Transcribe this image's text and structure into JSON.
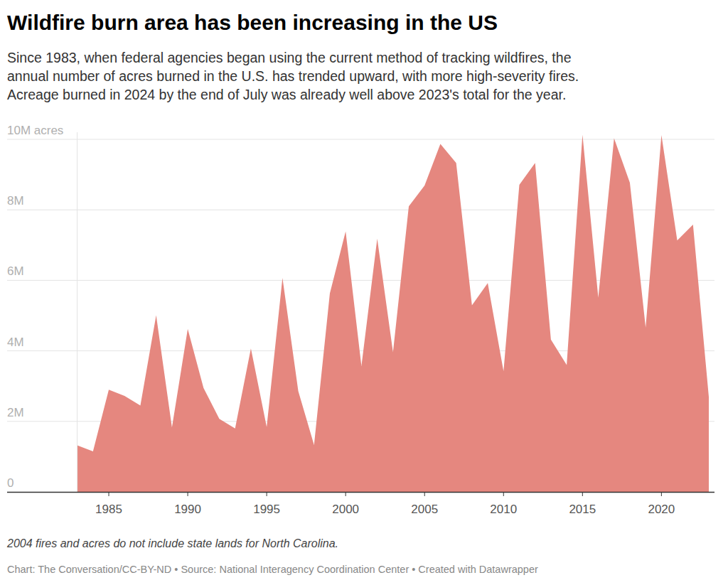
{
  "chart_data": {
    "type": "area",
    "title": "Wildfire burn area has been increasing in the US",
    "subtitle": [
      "Since 1983, when federal agencies began using the current method of tracking wildfires, the",
      "annual number of acres burned in the U.S. has trended upward, with more high-severity fires.",
      "Acreage burned in 2024 by the end of July was already well above 2023's total for the year."
    ],
    "note": "2004 fires and acres do not include state lands for North Carolina.",
    "source": "Chart: The Conversation/CC-BY-ND • Source: National Interagency Coordination Center • Created with Datawrapper",
    "color": "#e5877f",
    "grid": true,
    "x": [
      1983,
      1984,
      1985,
      1986,
      1987,
      1988,
      1989,
      1990,
      1991,
      1992,
      1993,
      1994,
      1995,
      1996,
      1997,
      1998,
      1999,
      2000,
      2001,
      2002,
      2003,
      2004,
      2005,
      2006,
      2007,
      2008,
      2009,
      2010,
      2011,
      2012,
      2013,
      2014,
      2015,
      2016,
      2017,
      2018,
      2019,
      2020,
      2021,
      2022,
      2023
    ],
    "values": [
      1320000,
      1150000,
      2900000,
      2720000,
      2450000,
      5010000,
      1830000,
      4620000,
      2950000,
      2070000,
      1800000,
      4070000,
      1840000,
      6070000,
      2860000,
      1330000,
      5630000,
      7390000,
      3570000,
      7180000,
      3960000,
      8100000,
      8690000,
      9870000,
      9330000,
      5290000,
      5920000,
      3420000,
      8710000,
      9330000,
      4320000,
      3600000,
      10130000,
      5510000,
      10030000,
      8770000,
      4660000,
      10120000,
      7130000,
      7580000,
      2690000
    ],
    "xlim": [
      1983,
      2023
    ],
    "xticks": [
      1985,
      1990,
      1995,
      2000,
      2005,
      2010,
      2015,
      2020
    ],
    "ylim": [
      0,
      10200000
    ],
    "yticks": [
      0,
      {
        "value": 2000000,
        "label": "2M"
      },
      {
        "value": 4000000,
        "label": "4M"
      },
      {
        "value": 6000000,
        "label": "6M"
      },
      {
        "value": 8000000,
        "label": "8M"
      },
      {
        "value": 10000000,
        "label": "10M acres"
      }
    ]
  }
}
